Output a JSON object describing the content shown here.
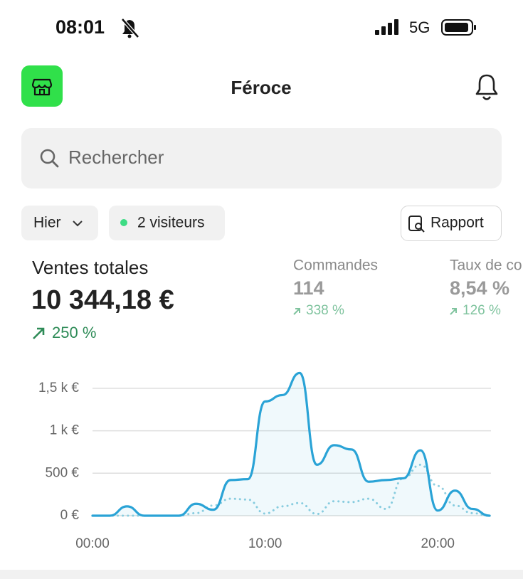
{
  "status_bar": {
    "time": "08:01",
    "network": "5G"
  },
  "header": {
    "title": "Féroce"
  },
  "search": {
    "placeholder": "Rechercher"
  },
  "filters": {
    "period": "Hier",
    "visitors": "2 visiteurs",
    "report": "Rapport"
  },
  "metrics": [
    {
      "label": "Ventes totales",
      "value": "10 344,18 €",
      "change": "250 %"
    },
    {
      "label": "Commandes",
      "value": "114",
      "change": "338 %"
    },
    {
      "label": "Taux de conversion",
      "value": "8,54 %",
      "change": "126 %"
    }
  ],
  "chart_data": {
    "type": "line",
    "x": [
      0,
      1,
      2,
      3,
      4,
      5,
      6,
      7,
      8,
      9,
      10,
      11,
      12,
      13,
      14,
      15,
      16,
      17,
      18,
      19,
      20,
      21,
      22,
      23
    ],
    "series": [
      {
        "color": "#2aa3d6",
        "style": "solid",
        "area": true,
        "values": [
          0,
          0,
          110,
          0,
          0,
          0,
          140,
          70,
          420,
          430,
          1345,
          1420,
          1680,
          600,
          830,
          780,
          400,
          420,
          440,
          770,
          60,
          295,
          80,
          0
        ]
      },
      {
        "color": "#8fcfe0",
        "style": "dotted",
        "values": [
          0,
          0,
          0,
          0,
          0,
          0,
          30,
          120,
          200,
          190,
          25,
          110,
          150,
          20,
          170,
          160,
          200,
          80,
          440,
          600,
          350,
          120,
          30,
          0
        ]
      }
    ],
    "xlim": [
      0,
      23
    ],
    "xticks": [
      {
        "value": 0,
        "label": "00:00"
      },
      {
        "value": 10,
        "label": "10:00"
      },
      {
        "value": 20,
        "label": "20:00"
      }
    ],
    "ylim": [
      0,
      1700
    ],
    "yticks": [
      {
        "value": 0,
        "label": "0 €"
      },
      {
        "value": 500,
        "label": "500 €"
      },
      {
        "value": 1000,
        "label": "1 k €"
      },
      {
        "value": 1500,
        "label": "1,5 k €"
      }
    ],
    "grid": true
  }
}
